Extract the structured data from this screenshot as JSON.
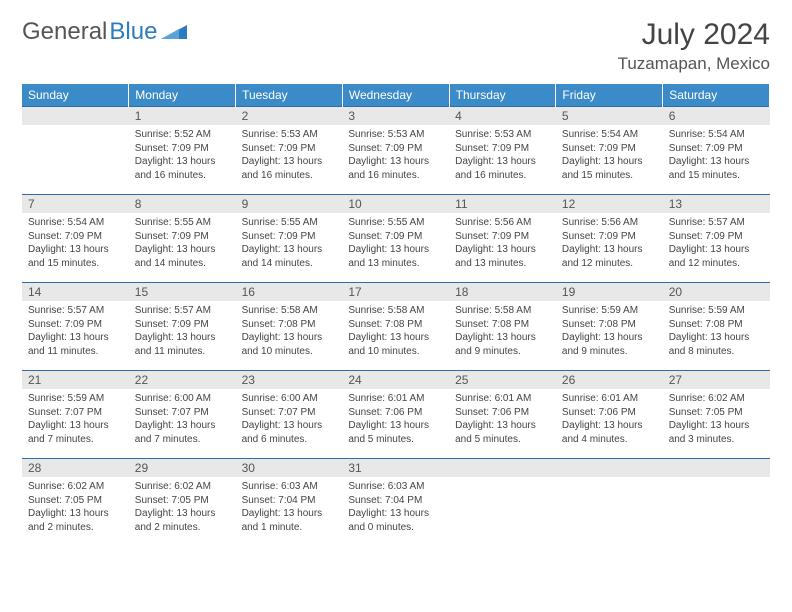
{
  "brand": {
    "part1": "General",
    "part2": "Blue"
  },
  "title": "July 2024",
  "location": "Tuzamapan, Mexico",
  "colors": {
    "header_bg": "#3b8bc8",
    "header_text": "#ffffff",
    "daynum_bg": "#e8e8e8",
    "border": "#2e6da8",
    "brand_blue": "#2e7cc0"
  },
  "weekdays": [
    "Sunday",
    "Monday",
    "Tuesday",
    "Wednesday",
    "Thursday",
    "Friday",
    "Saturday"
  ],
  "weeks": [
    [
      null,
      {
        "n": "1",
        "sunrise": "5:52 AM",
        "sunset": "7:09 PM",
        "daylight": "13 hours and 16 minutes."
      },
      {
        "n": "2",
        "sunrise": "5:53 AM",
        "sunset": "7:09 PM",
        "daylight": "13 hours and 16 minutes."
      },
      {
        "n": "3",
        "sunrise": "5:53 AM",
        "sunset": "7:09 PM",
        "daylight": "13 hours and 16 minutes."
      },
      {
        "n": "4",
        "sunrise": "5:53 AM",
        "sunset": "7:09 PM",
        "daylight": "13 hours and 16 minutes."
      },
      {
        "n": "5",
        "sunrise": "5:54 AM",
        "sunset": "7:09 PM",
        "daylight": "13 hours and 15 minutes."
      },
      {
        "n": "6",
        "sunrise": "5:54 AM",
        "sunset": "7:09 PM",
        "daylight": "13 hours and 15 minutes."
      }
    ],
    [
      {
        "n": "7",
        "sunrise": "5:54 AM",
        "sunset": "7:09 PM",
        "daylight": "13 hours and 15 minutes."
      },
      {
        "n": "8",
        "sunrise": "5:55 AM",
        "sunset": "7:09 PM",
        "daylight": "13 hours and 14 minutes."
      },
      {
        "n": "9",
        "sunrise": "5:55 AM",
        "sunset": "7:09 PM",
        "daylight": "13 hours and 14 minutes."
      },
      {
        "n": "10",
        "sunrise": "5:55 AM",
        "sunset": "7:09 PM",
        "daylight": "13 hours and 13 minutes."
      },
      {
        "n": "11",
        "sunrise": "5:56 AM",
        "sunset": "7:09 PM",
        "daylight": "13 hours and 13 minutes."
      },
      {
        "n": "12",
        "sunrise": "5:56 AM",
        "sunset": "7:09 PM",
        "daylight": "13 hours and 12 minutes."
      },
      {
        "n": "13",
        "sunrise": "5:57 AM",
        "sunset": "7:09 PM",
        "daylight": "13 hours and 12 minutes."
      }
    ],
    [
      {
        "n": "14",
        "sunrise": "5:57 AM",
        "sunset": "7:09 PM",
        "daylight": "13 hours and 11 minutes."
      },
      {
        "n": "15",
        "sunrise": "5:57 AM",
        "sunset": "7:09 PM",
        "daylight": "13 hours and 11 minutes."
      },
      {
        "n": "16",
        "sunrise": "5:58 AM",
        "sunset": "7:08 PM",
        "daylight": "13 hours and 10 minutes."
      },
      {
        "n": "17",
        "sunrise": "5:58 AM",
        "sunset": "7:08 PM",
        "daylight": "13 hours and 10 minutes."
      },
      {
        "n": "18",
        "sunrise": "5:58 AM",
        "sunset": "7:08 PM",
        "daylight": "13 hours and 9 minutes."
      },
      {
        "n": "19",
        "sunrise": "5:59 AM",
        "sunset": "7:08 PM",
        "daylight": "13 hours and 9 minutes."
      },
      {
        "n": "20",
        "sunrise": "5:59 AM",
        "sunset": "7:08 PM",
        "daylight": "13 hours and 8 minutes."
      }
    ],
    [
      {
        "n": "21",
        "sunrise": "5:59 AM",
        "sunset": "7:07 PM",
        "daylight": "13 hours and 7 minutes."
      },
      {
        "n": "22",
        "sunrise": "6:00 AM",
        "sunset": "7:07 PM",
        "daylight": "13 hours and 7 minutes."
      },
      {
        "n": "23",
        "sunrise": "6:00 AM",
        "sunset": "7:07 PM",
        "daylight": "13 hours and 6 minutes."
      },
      {
        "n": "24",
        "sunrise": "6:01 AM",
        "sunset": "7:06 PM",
        "daylight": "13 hours and 5 minutes."
      },
      {
        "n": "25",
        "sunrise": "6:01 AM",
        "sunset": "7:06 PM",
        "daylight": "13 hours and 5 minutes."
      },
      {
        "n": "26",
        "sunrise": "6:01 AM",
        "sunset": "7:06 PM",
        "daylight": "13 hours and 4 minutes."
      },
      {
        "n": "27",
        "sunrise": "6:02 AM",
        "sunset": "7:05 PM",
        "daylight": "13 hours and 3 minutes."
      }
    ],
    [
      {
        "n": "28",
        "sunrise": "6:02 AM",
        "sunset": "7:05 PM",
        "daylight": "13 hours and 2 minutes."
      },
      {
        "n": "29",
        "sunrise": "6:02 AM",
        "sunset": "7:05 PM",
        "daylight": "13 hours and 2 minutes."
      },
      {
        "n": "30",
        "sunrise": "6:03 AM",
        "sunset": "7:04 PM",
        "daylight": "13 hours and 1 minute."
      },
      {
        "n": "31",
        "sunrise": "6:03 AM",
        "sunset": "7:04 PM",
        "daylight": "13 hours and 0 minutes."
      },
      null,
      null,
      null
    ]
  ]
}
